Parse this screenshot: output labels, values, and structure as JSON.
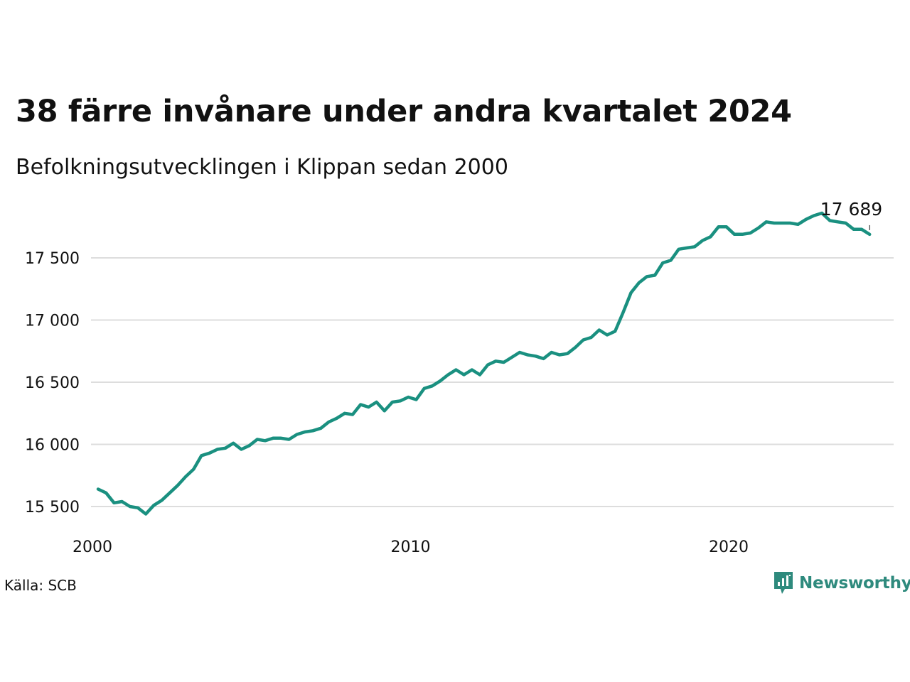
{
  "title": "38 färre invånare under andra kvartalet 2024",
  "subtitle": "Befolkningsutvecklingen i Klippan sedan 2000",
  "source": "Källa: SCB",
  "brand": "Newsworthy",
  "colors": {
    "line": "#1a9080",
    "grid": "#dddddd",
    "text": "#111111",
    "brand": "#2e8a7d"
  },
  "chart_data": {
    "type": "line",
    "title": "38 färre invånare under andra kvartalet 2024",
    "subtitle": "Befolkningsutvecklingen i Klippan sedan 2000",
    "xlabel": "",
    "ylabel": "",
    "grid": "horizontal",
    "xlim": [
      2000,
      2025
    ],
    "ylim": [
      15300,
      17880
    ],
    "x_ticks": [
      {
        "value": 2000,
        "label": "2000"
      },
      {
        "value": 2010,
        "label": "2010"
      },
      {
        "value": 2020,
        "label": "2020"
      }
    ],
    "y_ticks": [
      {
        "value": 15500,
        "label": "15 500"
      },
      {
        "value": 16000,
        "label": "16 000"
      },
      {
        "value": 16500,
        "label": "16 500"
      },
      {
        "value": 17000,
        "label": "17 000"
      },
      {
        "value": 17500,
        "label": "17 500"
      }
    ],
    "end_label": "17 689",
    "series": [
      {
        "x": [
          2000.0,
          2000.25,
          2000.5,
          2000.75,
          2001.0,
          2001.25,
          2001.5,
          2001.75,
          2002.0,
          2002.25,
          2002.5,
          2002.75,
          2003.0,
          2003.25,
          2003.5,
          2003.75,
          2004.0,
          2004.25,
          2004.5,
          2004.75,
          2005.0,
          2005.25,
          2005.5,
          2005.75,
          2006.0,
          2006.25,
          2006.5,
          2006.75,
          2007.0,
          2007.25,
          2007.5,
          2007.75,
          2008.0,
          2008.25,
          2008.5,
          2008.75,
          2009.0,
          2009.25,
          2009.5,
          2009.75,
          2010.0,
          2010.25,
          2010.5,
          2010.75,
          2011.0,
          2011.25,
          2011.5,
          2011.75,
          2012.0,
          2012.25,
          2012.5,
          2012.75,
          2013.0,
          2013.25,
          2013.5,
          2013.75,
          2014.0,
          2014.25,
          2014.5,
          2014.75,
          2015.0,
          2015.25,
          2015.5,
          2015.75,
          2016.0,
          2016.25,
          2016.5,
          2016.75,
          2017.0,
          2017.25,
          2017.5,
          2017.75,
          2018.0,
          2018.25,
          2018.5,
          2018.75,
          2019.0,
          2019.25,
          2019.5,
          2019.75,
          2020.0,
          2020.25,
          2020.5,
          2020.75,
          2021.0,
          2021.25,
          2021.5,
          2021.75,
          2022.0,
          2022.25,
          2022.5,
          2022.75,
          2023.0,
          2023.25,
          2023.5,
          2023.75,
          2024.0,
          2024.25
        ],
        "values": [
          15640,
          15610,
          15530,
          15540,
          15500,
          15490,
          15440,
          15510,
          15550,
          15610,
          15670,
          15740,
          15800,
          15910,
          15930,
          15960,
          15970,
          16010,
          15960,
          15990,
          16040,
          16030,
          16050,
          16050,
          16040,
          16080,
          16100,
          16110,
          16130,
          16180,
          16210,
          16250,
          16240,
          16320,
          16300,
          16340,
          16270,
          16340,
          16350,
          16380,
          16360,
          16450,
          16470,
          16510,
          16560,
          16600,
          16560,
          16600,
          16560,
          16640,
          16670,
          16660,
          16700,
          16740,
          16720,
          16710,
          16690,
          16740,
          16720,
          16730,
          16780,
          16840,
          16860,
          16920,
          16880,
          16910,
          17060,
          17220,
          17300,
          17350,
          17360,
          17460,
          17480,
          17570,
          17580,
          17590,
          17640,
          17670,
          17750,
          17750,
          17690,
          17690,
          17700,
          17740,
          17790,
          17780,
          17780,
          17780,
          17770,
          17810,
          17840,
          17860,
          17800,
          17790,
          17780,
          17730,
          17730,
          17689
        ]
      }
    ]
  }
}
